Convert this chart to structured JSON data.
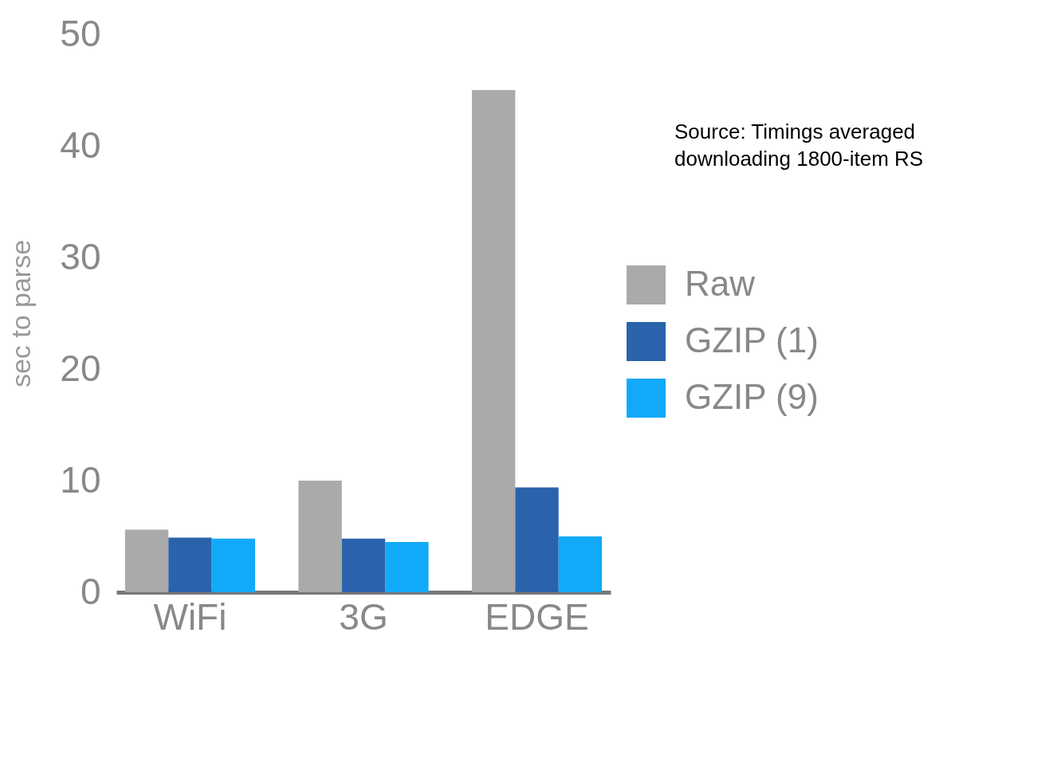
{
  "chart_data": {
    "type": "bar",
    "ylabel": "sec to parse",
    "categories": [
      "WiFi",
      "3G",
      "EDGE"
    ],
    "series": [
      {
        "name": "Raw",
        "color": "#aaaaaa",
        "values": [
          5.6,
          10.0,
          45.0
        ]
      },
      {
        "name": "GZIP (1)",
        "color": "#2a63ab",
        "values": [
          4.9,
          4.8,
          9.4
        ]
      },
      {
        "name": "GZIP (9)",
        "color": "#12aaf8",
        "values": [
          4.8,
          4.5,
          5.0
        ]
      }
    ],
    "ylim": [
      0,
      50
    ],
    "yticks": [
      0,
      10,
      20,
      30,
      40,
      50
    ],
    "grid": false,
    "legend": "right",
    "annotations": [
      "Source: Timings averaged\ndownloading 1800-item RS"
    ]
  }
}
